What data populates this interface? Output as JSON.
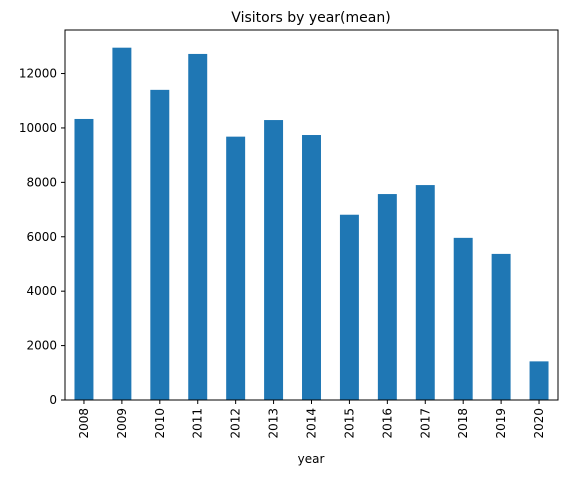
{
  "chart_data": {
    "type": "bar",
    "title": "Visitors by year(mean)",
    "xlabel": "year",
    "ylabel": "",
    "categories": [
      "2008",
      "2009",
      "2010",
      "2011",
      "2012",
      "2013",
      "2014",
      "2015",
      "2016",
      "2017",
      "2018",
      "2019",
      "2020"
    ],
    "values": [
      10330,
      12950,
      11400,
      12720,
      9680,
      10290,
      9740,
      6810,
      7570,
      7900,
      5960,
      5370,
      1420
    ],
    "ylim": [
      0,
      13600
    ],
    "yticks": [
      0,
      2000,
      4000,
      6000,
      8000,
      10000,
      12000
    ],
    "yticklabels": [
      "0",
      "2000",
      "4000",
      "6000",
      "8000",
      "10000",
      "12000"
    ],
    "grid": false,
    "legend": "none",
    "bar_color": "#1f77b4"
  }
}
